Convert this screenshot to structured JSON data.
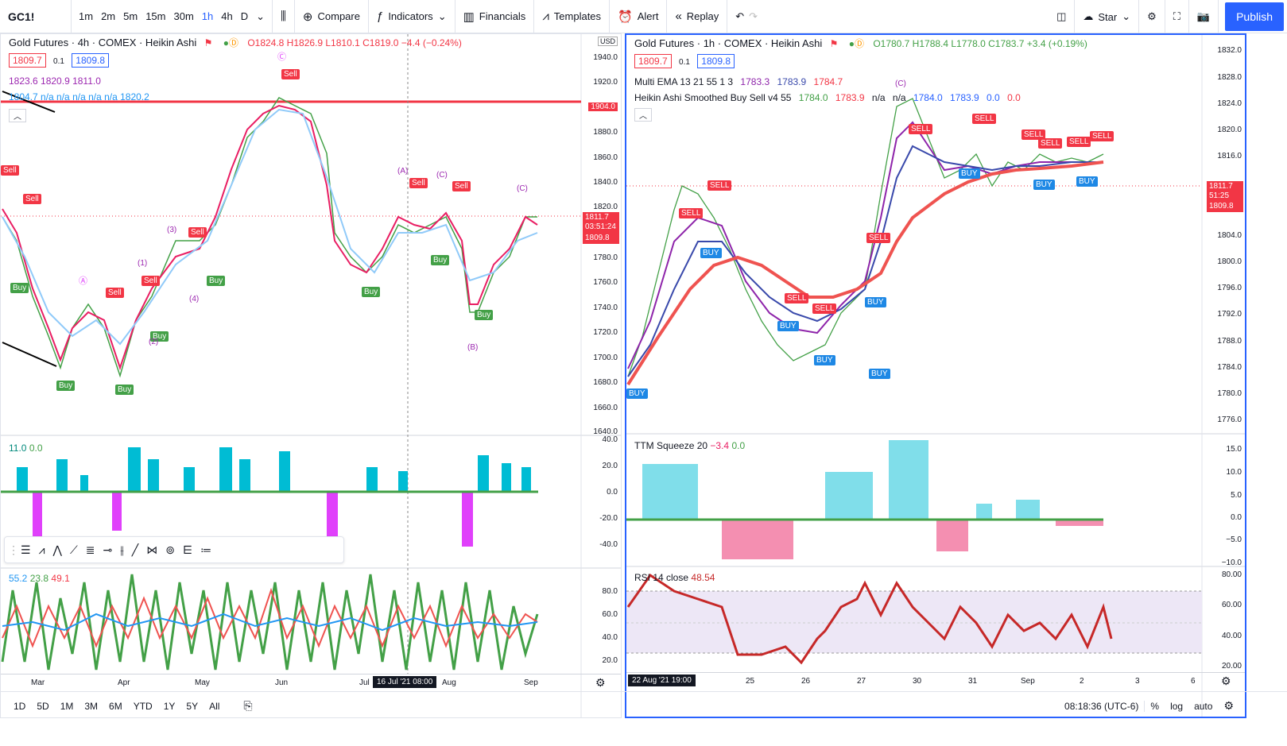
{
  "topbar": {
    "symbol": "GC1!",
    "intervals": [
      "1m",
      "2m",
      "5m",
      "15m",
      "30m",
      "1h",
      "4h",
      "D"
    ],
    "active_interval": "1h",
    "compare": "Compare",
    "indicators": "Indicators",
    "financials": "Financials",
    "templates": "Templates",
    "alert": "Alert",
    "replay": "Replay",
    "star": "Star",
    "publish": "Publish"
  },
  "left": {
    "title": "Gold Futures · 4h · COMEX · Heikin Ashi",
    "ohlc": "O1824.8  H1826.9  L1810.1  C1819.0  −4.4 (−0.24%)",
    "bid": "1809.7",
    "spread": "0.1",
    "ask": "1809.8",
    "ind1": "1823.6  1820.9  1811.0",
    "ind2": "1804.7  n/a  n/a  n/a  n/a  n/a  1820.2",
    "currency": "USD",
    "price_axis": [
      "1940.0",
      "1920.0",
      "1900.0",
      "1880.0",
      "1860.0",
      "1840.0",
      "1820.0",
      "1800.0",
      "1780.0",
      "1760.0",
      "1740.0",
      "1720.0",
      "1700.0",
      "1680.0",
      "1660.0",
      "1640.0"
    ],
    "hline": "1904.0",
    "cur_price": "1811.7",
    "cur_time": "03:51:24",
    "cur_ask": "1809.8",
    "osc_legend_a": "11.0",
    "osc_legend_b": "0.0",
    "osc_axis": [
      "40.0",
      "20.0",
      "0.0",
      "-20.0",
      "-40.0"
    ],
    "rsi_legend_a": "55.2",
    "rsi_legend_b": "23.8",
    "rsi_legend_c": "49.1",
    "rsi_axis": [
      "80.0",
      "60.0",
      "40.0",
      "20.0"
    ],
    "time_axis": [
      "Mar",
      "Apr",
      "May",
      "Jun",
      "Jul",
      "Aug",
      "Sep"
    ],
    "cursor_time": "16 Jul '21   08:00",
    "signals": [
      {
        "t": "Sell",
        "k": "sell"
      },
      {
        "t": "Sell",
        "k": "sell"
      },
      {
        "t": "Buy",
        "k": "buy"
      },
      {
        "t": "Buy",
        "k": "buy"
      },
      {
        "t": "Buy",
        "k": "buy"
      },
      {
        "t": "Sell",
        "k": "sell"
      },
      {
        "t": "Sell",
        "k": "sell"
      },
      {
        "t": "Buy",
        "k": "buy"
      },
      {
        "t": "Sell",
        "k": "sell"
      },
      {
        "t": "Buy",
        "k": "buy"
      },
      {
        "t": "Sell",
        "k": "sell"
      },
      {
        "t": "Buy",
        "k": "buy"
      },
      {
        "t": "Sell",
        "k": "sell"
      },
      {
        "t": "Sell",
        "k": "sell"
      },
      {
        "t": "Buy",
        "k": "buy"
      },
      {
        "t": "Buy",
        "k": "buy"
      }
    ],
    "waves": [
      "Ⓐ",
      "Ⓒ",
      "(1)",
      "(2)",
      "(3)",
      "(4)",
      "(A)",
      "(C)",
      "(B)",
      "(C)"
    ]
  },
  "right": {
    "title": "Gold Futures · 1h · COMEX · Heikin Ashi",
    "ohlc": "O1780.7  H1788.4  L1778.0  C1783.7  +3.4 (+0.19%)",
    "bid": "1809.7",
    "spread": "0.1",
    "ask": "1809.8",
    "ema_label": "Multi EMA 13 21 55 1 3",
    "ema_vals": [
      "1783.3",
      "1783.9",
      "1784.7"
    ],
    "ha_label": "Heikin Ashi Smoothed Buy Sell v4 55",
    "ha_vals": [
      "1784.0",
      "1783.9",
      "n/a",
      "n/a",
      "1784.0",
      "1783.9",
      "0.0",
      "0.0"
    ],
    "price_axis": [
      "1832.0",
      "1828.0",
      "1824.0",
      "1820.0",
      "1816.0",
      "1812.0",
      "1808.0",
      "1804.0",
      "1800.0",
      "1796.0",
      "1792.0",
      "1788.0",
      "1784.0",
      "1780.0",
      "1776.0"
    ],
    "cur_price": "1811.7",
    "cur_time": "51:25",
    "cur_ask": "1809.8",
    "ttm_label": "TTM Squeeze 20",
    "ttm_a": "−3.4",
    "ttm_b": "0.0",
    "ttm_axis": [
      "15.0",
      "10.0",
      "5.0",
      "0.0",
      "−5.0",
      "−10.0"
    ],
    "rsi_label": "RSI 14 close",
    "rsi_val": "48.54",
    "rsi_axis": [
      "80.00",
      "60.00",
      "40.00",
      "20.00"
    ],
    "time_axis": [
      "25",
      "26",
      "27",
      "30",
      "31",
      "Sep",
      "2",
      "3",
      "6"
    ],
    "cursor_time": "22 Aug '21   19:00",
    "signals": [
      {
        "t": "SELL",
        "k": "sell"
      },
      {
        "t": "SELL",
        "k": "sell"
      },
      {
        "t": "BUY",
        "k": "buy"
      },
      {
        "t": "SELL",
        "k": "sell"
      },
      {
        "t": "BUY",
        "k": "buy"
      },
      {
        "t": "SELL",
        "k": "sell"
      },
      {
        "t": "BUY",
        "k": "buy"
      },
      {
        "t": "SELL",
        "k": "sell"
      },
      {
        "t": "BUY",
        "k": "buy"
      },
      {
        "t": "BUY",
        "k": "buy"
      },
      {
        "t": "SELL",
        "k": "sell"
      },
      {
        "t": "SELL",
        "k": "sell"
      },
      {
        "t": "BUY",
        "k": "buy"
      },
      {
        "t": "SELL",
        "k": "sell"
      },
      {
        "t": "SELL",
        "k": "sell"
      },
      {
        "t": "SELL",
        "k": "sell"
      },
      {
        "t": "BUY",
        "k": "buy"
      },
      {
        "t": "BUY",
        "k": "buy"
      },
      {
        "t": "SELL",
        "k": "sell"
      },
      {
        "t": "BUY",
        "k": "buy"
      }
    ],
    "wave": "(C)"
  },
  "bottom": {
    "ranges": [
      "1D",
      "5D",
      "1M",
      "3M",
      "6M",
      "YTD",
      "1Y",
      "5Y",
      "All"
    ],
    "clock": "08:18:36 (UTC-6)",
    "pct": "%",
    "log": "log",
    "auto": "auto"
  },
  "colors": {
    "accent": "#2962ff",
    "sell": "#f23645",
    "buy": "#43a047",
    "buyR": "#1e88e5"
  }
}
